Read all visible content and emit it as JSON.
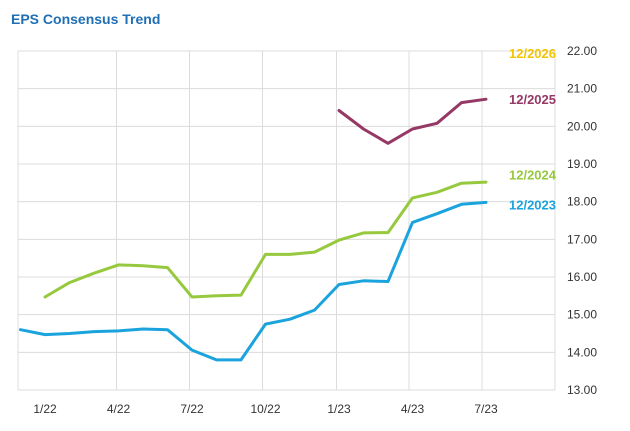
{
  "chart_data": {
    "type": "line",
    "title": "EPS Consensus Trend",
    "xlabel": "",
    "ylabel": "",
    "ylim": [
      13.0,
      22.0
    ],
    "y_ticks": [
      "13.00",
      "14.00",
      "15.00",
      "16.00",
      "17.00",
      "18.00",
      "19.00",
      "20.00",
      "21.00",
      "22.00"
    ],
    "x_ticks": [
      "1/22",
      "4/22",
      "7/22",
      "10/22",
      "1/23",
      "4/23",
      "7/23"
    ],
    "x_tick_months": [
      0,
      3,
      6,
      9,
      12,
      15,
      18
    ],
    "grid": true,
    "series": [
      {
        "name": "12/2023",
        "color": "#1aa3dd",
        "x": [
          -1,
          0,
          1,
          2,
          3,
          4,
          5,
          6,
          7,
          8,
          9,
          10,
          11,
          12,
          13,
          14,
          15,
          16,
          17,
          18
        ],
        "values": [
          14.6,
          14.47,
          14.5,
          14.55,
          14.57,
          14.62,
          14.6,
          14.06,
          13.8,
          13.8,
          14.75,
          14.88,
          15.12,
          15.8,
          15.9,
          15.88,
          17.45,
          17.68,
          17.93,
          17.98
        ]
      },
      {
        "name": "12/2024",
        "color": "#96c93d",
        "x": [
          0,
          1,
          2,
          3,
          4,
          5,
          6,
          7,
          8,
          9,
          10,
          11,
          12,
          13,
          14,
          15,
          16,
          17,
          18
        ],
        "values": [
          15.47,
          15.85,
          16.1,
          16.32,
          16.3,
          16.25,
          15.47,
          15.5,
          15.52,
          16.6,
          16.6,
          16.66,
          16.98,
          17.17,
          17.18,
          18.1,
          18.25,
          18.49,
          18.52
        ]
      },
      {
        "name": "12/2025",
        "color": "#953865",
        "x": [
          12,
          13,
          14,
          15,
          16,
          17,
          18
        ],
        "values": [
          20.42,
          19.93,
          19.55,
          19.93,
          20.08,
          20.63,
          20.72
        ]
      },
      {
        "name": "12/2026",
        "color": "#f2c400",
        "x": [],
        "values": []
      }
    ]
  }
}
